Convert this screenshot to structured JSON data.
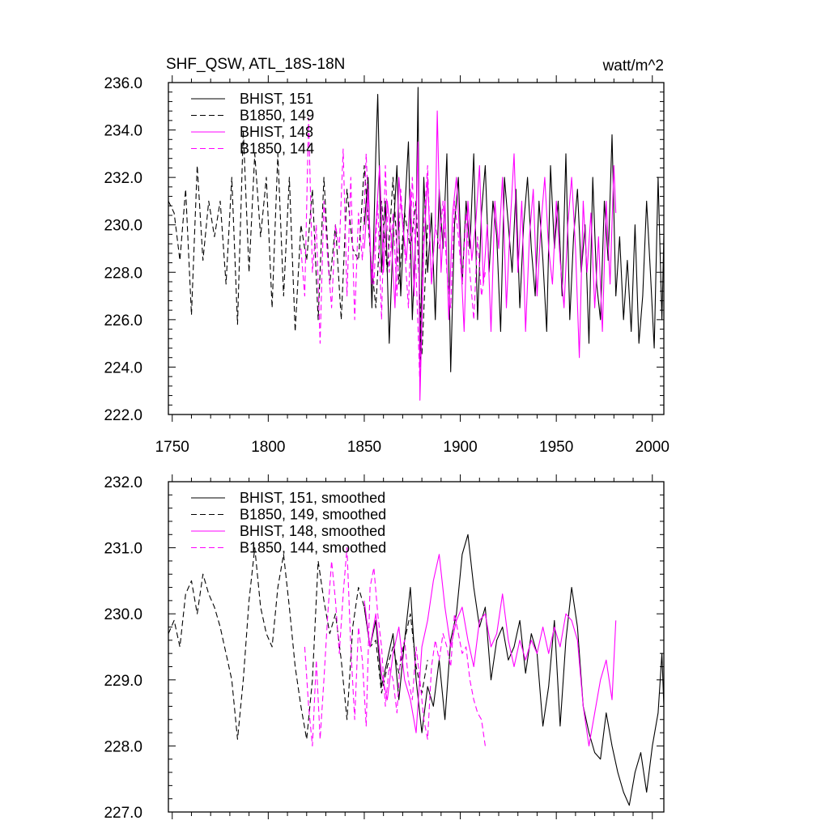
{
  "colors": {
    "black": "#000000",
    "magenta": "#ff00ff"
  },
  "chart_data": [
    {
      "type": "line",
      "title": "SHF_QSW, ATL_18S-18N",
      "units": "watt/m^2",
      "xlim": [
        1748,
        2006
      ],
      "ylim": [
        222.0,
        236.0
      ],
      "xticks": [
        1750,
        1800,
        1850,
        1900,
        1950,
        2000
      ],
      "yticks": [
        "222.0",
        "224.0",
        "226.0",
        "228.0",
        "230.0",
        "232.0",
        "234.0",
        "236.0"
      ],
      "legend": [
        "BHIST, 151",
        "B1850, 149",
        "BHIST, 148",
        "B1850, 144"
      ],
      "series": [
        {
          "name": "BHIST, 151",
          "color": "#000000",
          "dash": false,
          "x": [
            1850,
            1852,
            1854,
            1856,
            1857,
            1859,
            1861,
            1863,
            1865,
            1867,
            1869,
            1871,
            1873,
            1875,
            1877,
            1878,
            1879,
            1881,
            1883,
            1885,
            1887,
            1889,
            1891,
            1893,
            1895,
            1897,
            1899,
            1901,
            1903,
            1905,
            1907,
            1909,
            1911,
            1913,
            1915,
            1917,
            1919,
            1921,
            1923,
            1925,
            1927,
            1929,
            1931,
            1933,
            1935,
            1937,
            1939,
            1941,
            1943,
            1945,
            1947,
            1949,
            1951,
            1953,
            1955,
            1957,
            1959,
            1961,
            1963,
            1965,
            1967,
            1969,
            1971,
            1973,
            1975,
            1977,
            1979,
            1981,
            1983,
            1985,
            1987,
            1989,
            1991,
            1993,
            1995,
            1997,
            1999,
            2001,
            2003,
            2005,
            2006
          ],
          "y": [
            230,
            232,
            226.5,
            233,
            235.5,
            228,
            231,
            225,
            229.5,
            232.5,
            227,
            230.5,
            233.5,
            226,
            230,
            235.8,
            224,
            232,
            228,
            230.5,
            226,
            231.5,
            229,
            233,
            223.8,
            230,
            232,
            227.5,
            231,
            229,
            233,
            226,
            230.5,
            232.5,
            228,
            231,
            229.5,
            225.5,
            232,
            230,
            228,
            231.5,
            226.5,
            230,
            232,
            229,
            227,
            231,
            228.5,
            225.5,
            232.5,
            229,
            231,
            227,
            233,
            226,
            229.5,
            231.5,
            228,
            230,
            225,
            232,
            227.5,
            226,
            231,
            228.5,
            233.8,
            227,
            229.5,
            226,
            228.5,
            225.5,
            230,
            225,
            227,
            231,
            228,
            224.8,
            232,
            226,
            229.5
          ]
        },
        {
          "name": "B1850, 149",
          "color": "#000000",
          "dash": true,
          "x": [
            1748,
            1751,
            1754,
            1757,
            1760,
            1763,
            1766,
            1769,
            1772,
            1775,
            1778,
            1781,
            1784,
            1787,
            1790,
            1793,
            1796,
            1799,
            1802,
            1805,
            1808,
            1811,
            1814,
            1817,
            1820,
            1823,
            1826,
            1829,
            1832,
            1835,
            1838,
            1841,
            1844,
            1847,
            1850,
            1853,
            1856,
            1859,
            1862,
            1865,
            1868,
            1871,
            1874,
            1877,
            1880,
            1883
          ],
          "y": [
            231,
            230.5,
            228.5,
            231.5,
            226.2,
            232.5,
            228.5,
            231,
            229.5,
            231,
            227.5,
            232,
            225.8,
            234,
            228,
            233,
            229.5,
            232,
            226.5,
            233,
            227,
            232,
            225.5,
            230,
            228.5,
            231.5,
            226,
            232,
            227.5,
            230,
            226,
            231.5,
            229,
            228.5,
            232.5,
            229,
            226.5,
            231,
            228,
            232,
            227.5,
            230.5,
            229,
            231,
            224.5,
            230
          ]
        },
        {
          "name": "BHIST, 148",
          "color": "#ff00ff",
          "dash": false,
          "x": [
            1850,
            1852,
            1854,
            1856,
            1858,
            1860,
            1862,
            1864,
            1866,
            1868,
            1870,
            1872,
            1874,
            1876,
            1878,
            1879,
            1881,
            1883,
            1885,
            1887,
            1888,
            1890,
            1892,
            1894,
            1896,
            1898,
            1900,
            1902,
            1904,
            1906,
            1908,
            1910,
            1912,
            1914,
            1916,
            1918,
            1920,
            1922,
            1924,
            1926,
            1928,
            1930,
            1932,
            1934,
            1936,
            1938,
            1940,
            1942,
            1944,
            1946,
            1948,
            1950,
            1952,
            1954,
            1956,
            1958,
            1960,
            1962,
            1964,
            1966,
            1968,
            1970,
            1972,
            1974,
            1976,
            1978,
            1980,
            1981
          ],
          "y": [
            229,
            231.5,
            227.5,
            230,
            232.5,
            228,
            231,
            229.5,
            226.5,
            232,
            230,
            228.5,
            231.5,
            227,
            233.5,
            222.6,
            229,
            232,
            227.5,
            230,
            234.8,
            228,
            231,
            226,
            230.5,
            232,
            229,
            225.5,
            231,
            228.5,
            230,
            232.5,
            227.5,
            230,
            225.5,
            231,
            229,
            232,
            226.5,
            230,
            233,
            228,
            231,
            225.5,
            229.5,
            231.5,
            227,
            230,
            232,
            229,
            227.5,
            231,
            228.5,
            226.5,
            230,
            232,
            229,
            224.4,
            231,
            228,
            230.5,
            226.5,
            229.5,
            225.5,
            231,
            227.5,
            232.5,
            230.5
          ]
        },
        {
          "name": "B1850, 144",
          "color": "#ff00ff",
          "dash": true,
          "x": [
            1817,
            1819,
            1821,
            1823,
            1825,
            1827,
            1829,
            1831,
            1833,
            1835,
            1837,
            1839,
            1841,
            1843,
            1845,
            1847,
            1849,
            1851,
            1853,
            1855,
            1857,
            1859,
            1861,
            1863,
            1865,
            1867,
            1869,
            1871,
            1873,
            1875,
            1877,
            1879,
            1881,
            1883,
            1885,
            1887,
            1889,
            1891,
            1893,
            1895,
            1897,
            1899,
            1901,
            1903,
            1905,
            1907,
            1909,
            1911,
            1913
          ],
          "y": [
            229,
            227,
            234.5,
            228,
            230,
            225,
            231,
            228.5,
            226.5,
            230,
            229,
            233.2,
            227,
            232,
            226,
            230.5,
            228.5,
            233,
            229,
            227.5,
            231,
            226,
            232.5,
            228,
            230.5,
            227,
            231.5,
            229,
            226.5,
            232,
            228,
            223.2,
            230,
            232.5,
            227.5,
            230,
            229,
            231,
            228,
            226.5,
            231,
            229.5,
            227.5,
            230.5,
            228,
            226,
            229.5,
            227,
            228
          ]
        }
      ]
    },
    {
      "type": "line",
      "xlim": [
        1748,
        2006
      ],
      "ylim": [
        227.0,
        232.0
      ],
      "yticks": [
        "227.0",
        "228.0",
        "229.0",
        "230.0",
        "231.0",
        "232.0"
      ],
      "legend": [
        "BHIST, 151, smoothed",
        "B1850, 149, smoothed",
        "BHIST, 148, smoothed",
        "B1850, 144, smoothed"
      ],
      "series": [
        {
          "name": "BHIST, 151, smoothed",
          "color": "#000000",
          "dash": false,
          "x": [
            1850,
            1853,
            1856,
            1859,
            1862,
            1865,
            1868,
            1871,
            1874,
            1877,
            1880,
            1883,
            1886,
            1889,
            1892,
            1895,
            1898,
            1901,
            1904,
            1907,
            1910,
            1913,
            1916,
            1919,
            1922,
            1925,
            1928,
            1931,
            1934,
            1937,
            1940,
            1943,
            1946,
            1949,
            1952,
            1955,
            1958,
            1961,
            1964,
            1967,
            1970,
            1973,
            1976,
            1979,
            1982,
            1985,
            1988,
            1991,
            1994,
            1997,
            2000,
            2003,
            2005,
            2006
          ],
          "y": [
            230.1,
            229.5,
            229.9,
            228.9,
            229.3,
            229.7,
            228.7,
            229.6,
            230.4,
            229.0,
            228.2,
            228.9,
            228.6,
            229.3,
            228.4,
            229.6,
            230.0,
            230.9,
            231.2,
            230.4,
            229.8,
            230.1,
            229.0,
            229.6,
            229.8,
            229.3,
            229.5,
            229.9,
            229.1,
            229.7,
            229.4,
            228.3,
            228.9,
            229.9,
            228.3,
            229.6,
            230.4,
            229.8,
            228.6,
            228.2,
            227.9,
            227.8,
            228.5,
            228.0,
            227.6,
            227.3,
            227.1,
            227.6,
            227.9,
            227.3,
            228.0,
            228.5,
            229.4,
            228.6
          ]
        },
        {
          "name": "B1850, 149, smoothed",
          "color": "#000000",
          "dash": true,
          "x": [
            1748,
            1751,
            1754,
            1757,
            1760,
            1763,
            1766,
            1769,
            1772,
            1775,
            1778,
            1781,
            1784,
            1787,
            1790,
            1793,
            1796,
            1799,
            1802,
            1805,
            1808,
            1811,
            1814,
            1817,
            1820,
            1823,
            1826,
            1829,
            1832,
            1835,
            1838,
            1841,
            1844,
            1847,
            1850,
            1853,
            1856,
            1859,
            1862,
            1865,
            1868,
            1871,
            1874,
            1877,
            1880,
            1883
          ],
          "y": [
            229.7,
            229.9,
            229.5,
            230.3,
            230.5,
            230.0,
            230.6,
            230.3,
            230.1,
            229.8,
            229.4,
            229.0,
            228.1,
            229.0,
            230.2,
            231.0,
            230.1,
            229.7,
            229.5,
            230.4,
            230.9,
            230.1,
            229.2,
            228.6,
            228.1,
            229.0,
            230.8,
            230.2,
            229.7,
            230.0,
            229.3,
            228.4,
            229.8,
            230.4,
            230.1,
            229.5,
            229.6,
            228.8,
            229.2,
            229.5,
            229.1,
            229.6,
            230.0,
            229.2,
            228.8,
            229.3
          ]
        },
        {
          "name": "BHIST, 148, smoothed",
          "color": "#ff00ff",
          "dash": false,
          "x": [
            1850,
            1853,
            1856,
            1859,
            1862,
            1865,
            1868,
            1871,
            1874,
            1877,
            1880,
            1883,
            1886,
            1889,
            1892,
            1895,
            1898,
            1901,
            1904,
            1907,
            1910,
            1913,
            1916,
            1919,
            1922,
            1925,
            1928,
            1931,
            1934,
            1937,
            1940,
            1943,
            1946,
            1949,
            1952,
            1955,
            1958,
            1961,
            1964,
            1967,
            1970,
            1973,
            1976,
            1979,
            1981
          ],
          "y": [
            230.2,
            229.5,
            230.0,
            229.1,
            228.7,
            229.4,
            229.8,
            229.0,
            228.7,
            228.2,
            229.5,
            229.9,
            230.5,
            230.9,
            230.1,
            229.5,
            229.9,
            230.1,
            229.6,
            229.2,
            229.9,
            230.0,
            229.5,
            229.7,
            230.3,
            229.6,
            229.2,
            229.6,
            229.3,
            229.6,
            229.4,
            229.8,
            229.4,
            229.8,
            229.5,
            230.0,
            229.9,
            229.6,
            228.6,
            228.0,
            228.5,
            229.0,
            229.3,
            228.7,
            229.9
          ]
        },
        {
          "name": "B1850, 144, smoothed",
          "color": "#ff00ff",
          "dash": true,
          "x": [
            1819,
            1821,
            1823,
            1825,
            1827,
            1829,
            1831,
            1833,
            1835,
            1837,
            1839,
            1841,
            1843,
            1845,
            1847,
            1849,
            1851,
            1853,
            1855,
            1857,
            1859,
            1861,
            1863,
            1865,
            1867,
            1869,
            1871,
            1873,
            1875,
            1877,
            1879,
            1881,
            1883,
            1885,
            1887,
            1889,
            1891,
            1893,
            1895,
            1897,
            1899,
            1901,
            1903,
            1905,
            1907,
            1909,
            1911,
            1913
          ],
          "y": [
            229.5,
            228.6,
            228.0,
            229.3,
            228.1,
            229.0,
            230.0,
            230.8,
            230.2,
            229.4,
            230.3,
            231.0,
            229.5,
            228.4,
            229.8,
            229.3,
            228.3,
            230.4,
            230.7,
            230.0,
            229.5,
            228.6,
            229.2,
            229.0,
            228.5,
            229.4,
            229.6,
            229.0,
            228.7,
            229.5,
            229.0,
            228.4,
            228.1,
            229.2,
            229.6,
            229.3,
            229.7,
            229.5,
            229.2,
            230.0,
            229.7,
            229.4,
            229.5,
            229.0,
            228.7,
            228.5,
            228.4,
            228.0
          ]
        }
      ]
    }
  ]
}
